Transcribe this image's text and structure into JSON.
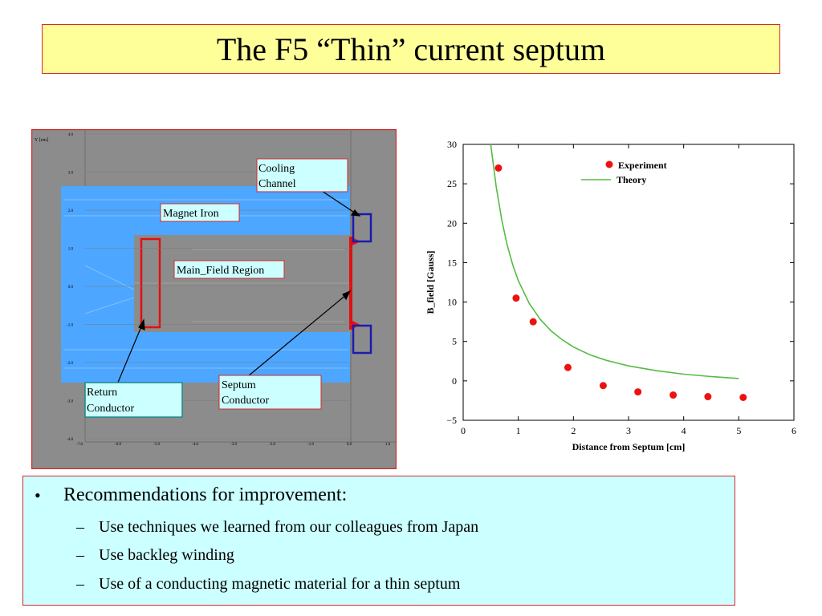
{
  "slide": {
    "title": "The F5 “Thin” current septum"
  },
  "simulation": {
    "y_axis_label": "Y [cm]",
    "y_ticks": [
      "4.0",
      "3.0",
      "2.0",
      "1.0",
      "0.0",
      "-1.0",
      "-2.0",
      "-3.0",
      "-4.0"
    ],
    "x_ticks": [
      "-7.0",
      "-6.0",
      "-5.0",
      "-4.0",
      "-3.0",
      "-2.0",
      "-1.0",
      "0.0",
      "1.0"
    ],
    "labels": {
      "cooling_channel": [
        "Cooling",
        "Channel"
      ],
      "magnet_iron": "Magnet Iron",
      "main_field_region": "Main_Field Region",
      "septum_conductor": [
        "Septum",
        "Conductor"
      ],
      "return_conductor": [
        "Return",
        "Conductor"
      ]
    },
    "colors": {
      "background": "#8c8c8c",
      "iron": "#4da6ff",
      "conductor": "#e01010",
      "cooling": "#1b1bb0",
      "border": "#d42a2a"
    }
  },
  "chart_data": {
    "type": "scatter",
    "xlabel": "Distance from Septum [cm]",
    "ylabel": "B_field [Gauss]",
    "xlim": [
      0,
      6
    ],
    "ylim": [
      -5,
      30
    ],
    "x_ticks": [
      "0",
      "1",
      "2",
      "3",
      "4",
      "5",
      "6"
    ],
    "y_ticks": [
      "30",
      "25",
      "20",
      "15",
      "10",
      "5",
      "0",
      "−5"
    ],
    "legend_position": "top-right",
    "grid": false,
    "series": [
      {
        "name": "Experiment",
        "kind": "points",
        "color": "#ee1111",
        "x": [
          0.64,
          0.96,
          1.27,
          1.9,
          2.54,
          3.17,
          3.81,
          4.44,
          5.08
        ],
        "y": [
          27.0,
          10.5,
          7.5,
          1.7,
          -0.6,
          -1.4,
          -1.8,
          -2.0,
          -2.1
        ]
      },
      {
        "name": "Theory",
        "kind": "line",
        "color": "#55bb44",
        "x": [
          0.5,
          0.6,
          0.7,
          0.8,
          0.9,
          1.0,
          1.2,
          1.4,
          1.6,
          1.8,
          2.0,
          2.3,
          2.6,
          3.0,
          3.5,
          4.0,
          4.5,
          5.0
        ],
        "y": [
          30.5,
          24.6,
          20.4,
          17.2,
          14.7,
          12.7,
          9.8,
          7.8,
          6.3,
          5.2,
          4.3,
          3.3,
          2.6,
          1.9,
          1.3,
          0.85,
          0.55,
          0.3
        ]
      }
    ]
  },
  "bullets": {
    "main": "Recommendations for improvement:",
    "items": [
      "Use techniques we learned from our colleagues from Japan",
      "Use backleg winding",
      "Use of a conducting magnetic material for a thin septum"
    ]
  }
}
